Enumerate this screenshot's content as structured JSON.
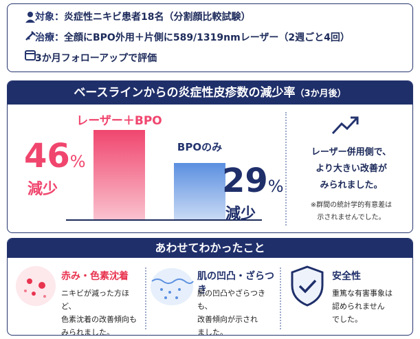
{
  "info": [
    {
      "label": "対象：",
      "text": "炎症性ニキビ患者18名（分割顔比較試験）"
    },
    {
      "label": "治療：",
      "text": "全顔にBPO外用＋片側に589/1319nmレーザー（2週ごと4回）"
    },
    {
      "text": "3か月フォローアップで評価"
    }
  ],
  "result": {
    "title": "ベースラインからの炎症性皮疹数の減少率",
    "title_note": "（3か月後）",
    "chart": {
      "type": "bar",
      "categories": [
        "レーザー＋BPO",
        "BPOのみ"
      ],
      "values": [
        46,
        29
      ],
      "unit": "%",
      "value_caption": "減少",
      "colors": [
        "#f0466e",
        "#5b8fe0"
      ]
    },
    "message": [
      "レーザー併用側で、",
      "より大きい改善が",
      "みられました。"
    ],
    "note": [
      "※群間の統計学的有意差は",
      "示されませんでした。"
    ]
  },
  "findings": {
    "title": "あわせてわかったこと",
    "items": [
      {
        "title": "赤み・色素沈着",
        "text": [
          "ニキビが減った方ほど、",
          "色素沈着の改善傾向も",
          "みられました。"
        ]
      },
      {
        "title": "肌の凹凸・ざらつき",
        "text": [
          "肌の凹凸やざらつきも、",
          "改善傾向が示され",
          "ました。"
        ]
      },
      {
        "title": "安全性",
        "text": [
          "重篤な有害事象は",
          "認められません",
          "でした。"
        ]
      }
    ]
  }
}
